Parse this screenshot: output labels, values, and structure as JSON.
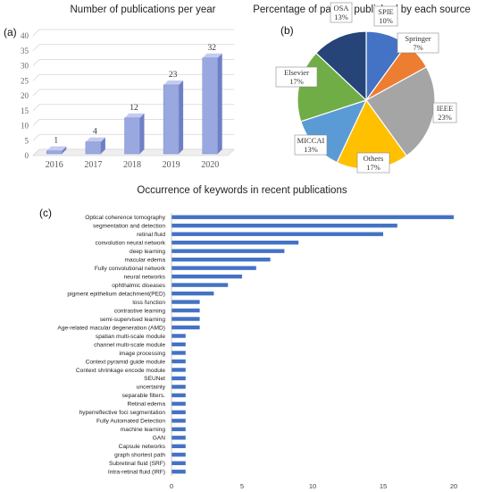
{
  "colors": {
    "bar_front": "#9aa8e0",
    "bar_side": "#6f7fc4",
    "bar_top": "#c3ccf0",
    "hbar": "#4472c4",
    "axis": "#999999"
  },
  "chart_data": [
    {
      "panel": "(a)",
      "type": "bar",
      "title": "Number of publications per year",
      "categories": [
        "2016",
        "2017",
        "2018",
        "2019",
        "2020"
      ],
      "values": [
        1,
        4,
        12,
        23,
        32
      ],
      "ylim": [
        0,
        40
      ],
      "yticks": [
        0,
        5,
        10,
        15,
        20,
        25,
        30,
        35,
        40
      ],
      "grid": true,
      "style": "3d-column"
    },
    {
      "panel": "(b)",
      "type": "pie",
      "title": "Percentage of papers published by each source",
      "slices": [
        {
          "label": "SPIE",
          "pct_text": "10%",
          "value": 10,
          "color": "#4472c4"
        },
        {
          "label": "Springer",
          "pct_text": "7%",
          "value": 7,
          "color": "#ed7d31"
        },
        {
          "label": "IEEE",
          "pct_text": "23%",
          "value": 23,
          "color": "#a5a5a5"
        },
        {
          "label": "Others",
          "pct_text": "17%",
          "value": 17,
          "color": "#ffc000"
        },
        {
          "label": "MICCAI",
          "pct_text": "13%",
          "value": 13,
          "color": "#5b9bd5"
        },
        {
          "label": "Elsevier",
          "pct_text": "17%",
          "value": 17,
          "color": "#70ad47"
        },
        {
          "label": "OSA",
          "pct_text": "13%",
          "value": 13,
          "color": "#264478"
        }
      ]
    },
    {
      "panel": "(c)",
      "type": "bar",
      "orientation": "horizontal",
      "title": "Occurrence of keywords in recent publications",
      "categories": [
        "Optical coherence tomography",
        "segmentation and detection",
        "retinal fluid",
        "convolution neural network",
        "deep learning",
        "macular edema",
        "Fully convolutional network",
        "neural networks",
        "ophthalmic diseases",
        "pigment epithelium detachment(PED)",
        "loss function",
        "contrastive learning",
        "semi-supervised learning",
        "Age-related macular degeneration (AMD)",
        "spatian multi-scale module",
        "channel multi-scale module",
        "image processing",
        "Context pyramid guide module",
        "Context shrinkage encode module",
        "SEUNet",
        "uncertainty",
        "separable filters.",
        "Retinal edema",
        "hyperreflective foci segmentation",
        "Fully Automated Detection",
        "machine learning",
        "GAN",
        "Capsule networks",
        "graph shortest path",
        "Subretinal fluid (SRF)",
        "Intra-retinal fluid (IRF)"
      ],
      "values": [
        20,
        16,
        15,
        9,
        8,
        7,
        6,
        5,
        4,
        3,
        2,
        2,
        2,
        2,
        1,
        1,
        1,
        1,
        1,
        1,
        1,
        1,
        1,
        1,
        1,
        1,
        1,
        1,
        1,
        1,
        1
      ],
      "xlim": [
        0,
        20
      ],
      "xticks": [
        0,
        5,
        10,
        15,
        20
      ],
      "grid": false
    }
  ]
}
